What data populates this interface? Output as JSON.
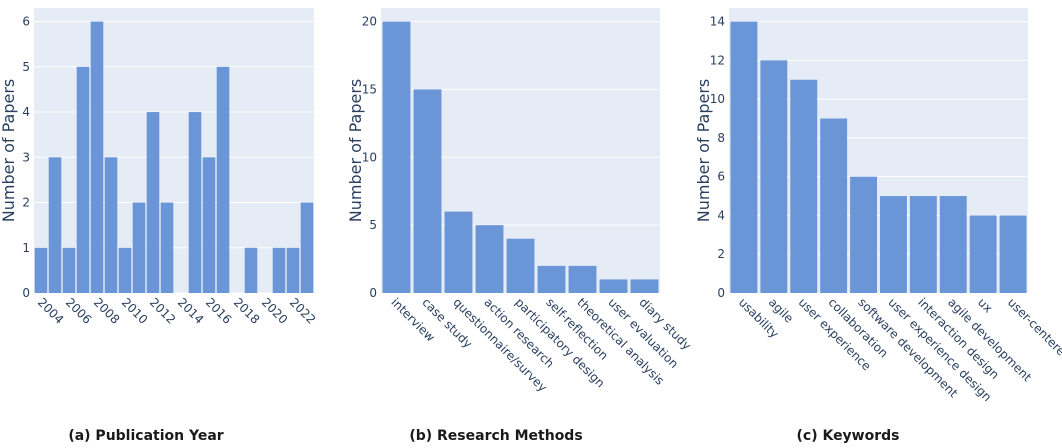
{
  "colors": {
    "plot_bg": "#e5ecf6",
    "bar": "#6a96d8",
    "grid": "#ffffff",
    "text": "#2a3f5f"
  },
  "captions": [
    "(a) Publication Year",
    "(b) Research Methods",
    "(c) Keywords"
  ],
  "chart_data": [
    {
      "type": "bar",
      "x_type": "numeric",
      "x": [
        2004,
        2005,
        2006,
        2007,
        2008,
        2009,
        2010,
        2011,
        2012,
        2013,
        2015,
        2016,
        2017,
        2019,
        2021,
        2022,
        2023
      ],
      "values": [
        1,
        3,
        1,
        5,
        6,
        3,
        1,
        2,
        4,
        2,
        4,
        3,
        5,
        1,
        1,
        1,
        2
      ],
      "xticks": [
        "2004",
        "2006",
        "2008",
        "2010",
        "2012",
        "2014",
        "2016",
        "2018",
        "2020",
        "2022"
      ],
      "xlim": [
        2003.5,
        2023.5
      ],
      "ylabel": "Number of Papers",
      "ylim": [
        0,
        6.3
      ],
      "yticks": [
        "0",
        "1",
        "2",
        "3",
        "4",
        "5",
        "6"
      ],
      "grid": true
    },
    {
      "type": "bar",
      "categories": [
        "interview",
        "case study",
        "questionnaire/survey",
        "action research",
        "participatory design",
        "self-reflection",
        "theoretical analysis",
        "user evaluation",
        "diary study"
      ],
      "values": [
        20,
        15,
        6,
        5,
        4,
        2,
        2,
        1,
        1
      ],
      "ylabel": "Number of Papers",
      "ylim": [
        0,
        21
      ],
      "yticks": [
        "0",
        "5",
        "10",
        "15",
        "20"
      ],
      "grid": true
    },
    {
      "type": "bar",
      "categories": [
        "usability",
        "agile",
        "user experience",
        "collaboration",
        "software development",
        "user experience design",
        "interaction design",
        "agile development",
        "ux",
        "user-centered"
      ],
      "values": [
        14,
        12,
        11,
        9,
        6,
        5,
        5,
        5,
        4,
        4
      ],
      "ylabel": "Number of Papers",
      "ylim": [
        0,
        14.7
      ],
      "yticks": [
        "0",
        "2",
        "4",
        "6",
        "8",
        "10",
        "12",
        "14"
      ],
      "grid": true
    }
  ]
}
